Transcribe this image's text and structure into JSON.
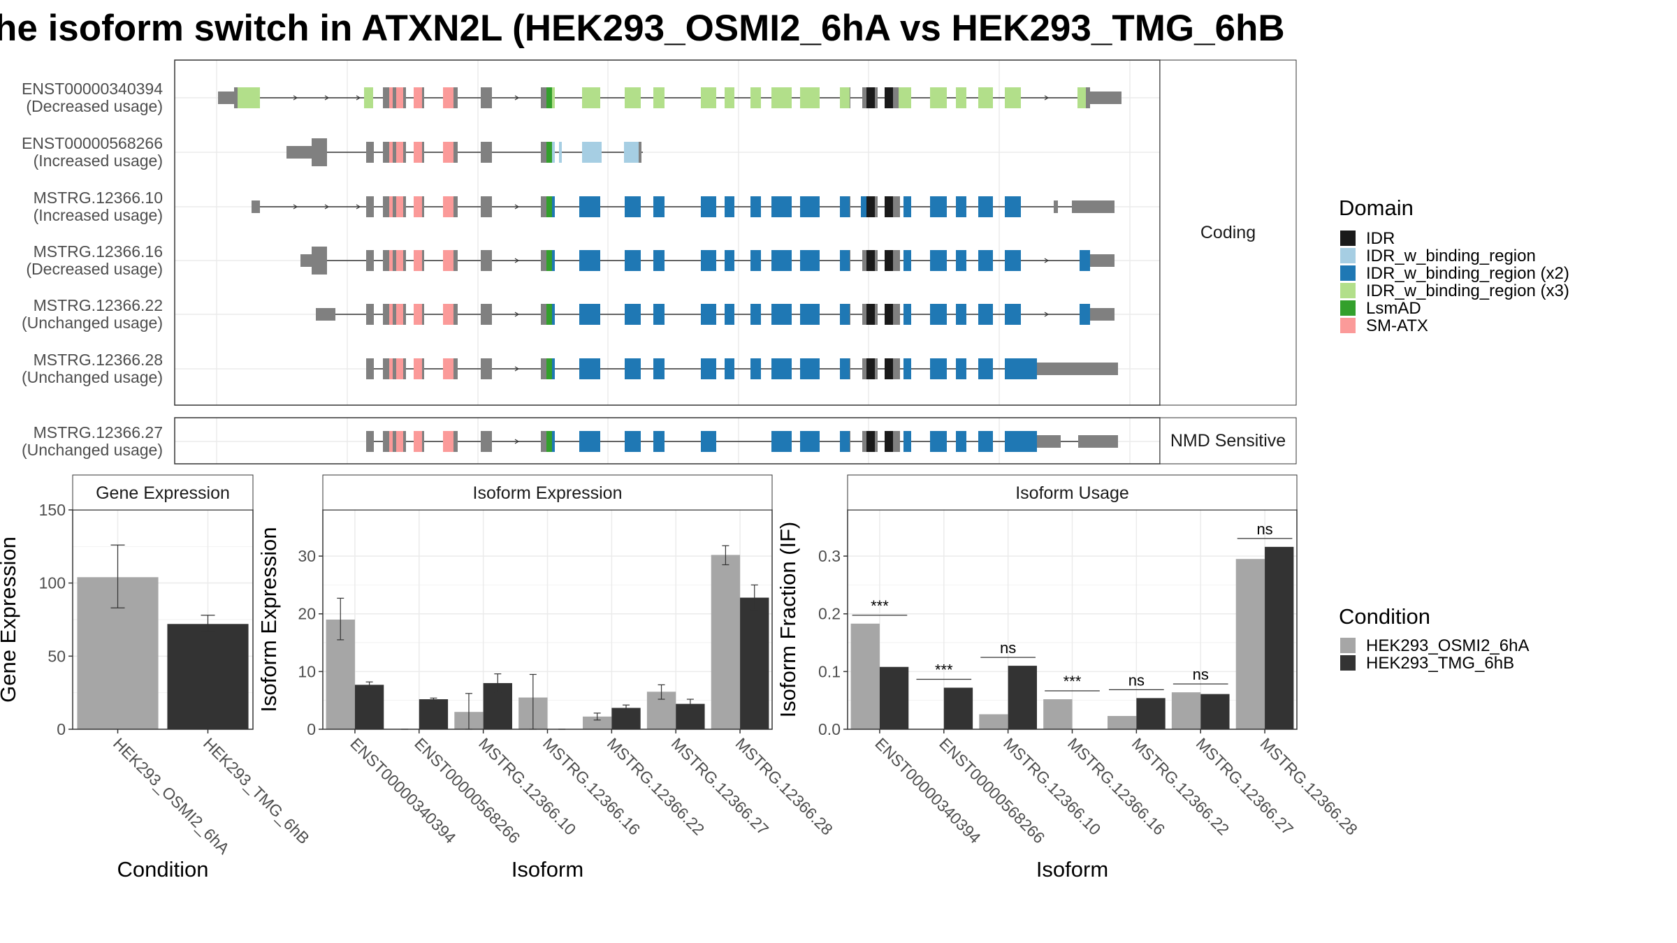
{
  "title": "he isoform switch in ATXN2L (HEK293_OSMI2_6hA vs HEK293_TMG_6hB",
  "chart_data": [
    {
      "type": "gene-structure",
      "panels": [
        {
          "label": "Coding",
          "transcripts": [
            {
              "id": "ENST00000340394",
              "usage": "(Decreased usage)",
              "domain_fill": "x3"
            },
            {
              "id": "ENST00000568266",
              "usage": "(Increased usage)",
              "domain_fill": "partial"
            },
            {
              "id": "MSTRG.12366.10",
              "usage": "(Increased usage)",
              "domain_fill": "x2"
            },
            {
              "id": "MSTRG.12366.16",
              "usage": "(Decreased usage)",
              "domain_fill": "x2"
            },
            {
              "id": "MSTRG.12366.22",
              "usage": "(Unchanged usage)",
              "domain_fill": "x2"
            },
            {
              "id": "MSTRG.12366.28",
              "usage": "(Unchanged usage)",
              "domain_fill": "x2"
            }
          ]
        },
        {
          "label": "NMD Sensitive",
          "transcripts": [
            {
              "id": "MSTRG.12366.27",
              "usage": "(Unchanged usage)",
              "domain_fill": "x2"
            }
          ]
        }
      ],
      "legend": {
        "title": "Domain",
        "items": [
          {
            "label": "IDR",
            "color": "#1a1a1a"
          },
          {
            "label": "IDR_w_binding_region",
            "color": "#a6cee3"
          },
          {
            "label": "IDR_w_binding_region (x2)",
            "color": "#1f78b4"
          },
          {
            "label": "IDR_w_binding_region (x3)",
            "color": "#b2df8a"
          },
          {
            "label": "LsmAD",
            "color": "#33a02c"
          },
          {
            "label": "SM-ATX",
            "color": "#fb9a99"
          }
        ]
      }
    },
    {
      "type": "bar",
      "strip": "Gene Expression",
      "xlabel": "Condition",
      "ylabel": "Gene Expression",
      "ylim": [
        0,
        150
      ],
      "yticks": [
        0,
        50,
        100,
        150
      ],
      "categories": [
        "HEK293_OSMI2_6hA",
        "HEK293_TMG_6hB"
      ],
      "values": [
        104,
        72
      ],
      "errors": [
        [
          83,
          126
        ],
        [
          67,
          78
        ]
      ],
      "colors": [
        "#a6a6a6",
        "#333333"
      ]
    },
    {
      "type": "bar",
      "strip": "Isoform Expression",
      "xlabel": "Isoform",
      "ylabel": "Isoform Expression",
      "ylim": [
        0,
        38
      ],
      "yticks": [
        0,
        10,
        20,
        30
      ],
      "categories": [
        "ENST00000340394",
        "ENST00000568266",
        "MSTRG.12366.10",
        "MSTRG.12366.16",
        "MSTRG.12366.22",
        "MSTRG.12366.27",
        "MSTRG.12366.28"
      ],
      "series": [
        {
          "name": "HEK293_OSMI2_6hA",
          "values": [
            19,
            0,
            3,
            5.5,
            2.2,
            6.5,
            30.2
          ],
          "errors": [
            [
              15.5,
              22.7
            ],
            [
              0,
              0
            ],
            [
              0,
              6.2
            ],
            [
              0,
              9.5
            ],
            [
              1.6,
              2.8
            ],
            [
              5.2,
              7.7
            ],
            [
              28.5,
              31.8
            ]
          ]
        },
        {
          "name": "HEK293_TMG_6hB",
          "values": [
            7.7,
            5.2,
            8,
            0,
            3.7,
            4.4,
            22.8
          ],
          "errors": [
            [
              7.2,
              8.2
            ],
            [
              5.0,
              5.4
            ],
            [
              6.4,
              9.6
            ],
            [
              0,
              0
            ],
            [
              3.2,
              4.2
            ],
            [
              3.6,
              5.2
            ],
            [
              20.7,
              25.0
            ]
          ]
        }
      ]
    },
    {
      "type": "bar",
      "strip": "Isoform Usage",
      "xlabel": "Isoform",
      "ylabel": "Isoform Fraction (IF)",
      "ylim": [
        0,
        0.38
      ],
      "yticks": [
        0.0,
        0.1,
        0.2,
        0.3
      ],
      "ytick_labels": [
        "0.0",
        "0.1",
        "0.2",
        "0.3"
      ],
      "categories": [
        "ENST00000340394",
        "ENST00000568266",
        "MSTRG.12366.10",
        "MSTRG.12366.16",
        "MSTRG.12366.22",
        "MSTRG.12366.27",
        "MSTRG.12366.28"
      ],
      "series": [
        {
          "name": "HEK293_OSMI2_6hA",
          "values": [
            0.183,
            0,
            0.026,
            0.052,
            0.023,
            0.064,
            0.295
          ]
        },
        {
          "name": "HEK293_TMG_6hB",
          "values": [
            0.108,
            0.072,
            0.11,
            0,
            0.054,
            0.061,
            0.316
          ]
        }
      ],
      "significance": [
        "***",
        "***",
        "ns",
        "***",
        "ns",
        "ns",
        "ns"
      ],
      "legend": {
        "title": "Condition",
        "items": [
          {
            "label": "HEK293_OSMI2_6hA",
            "color": "#a6a6a6"
          },
          {
            "label": "HEK293_TMG_6hB",
            "color": "#333333"
          }
        ]
      }
    }
  ]
}
